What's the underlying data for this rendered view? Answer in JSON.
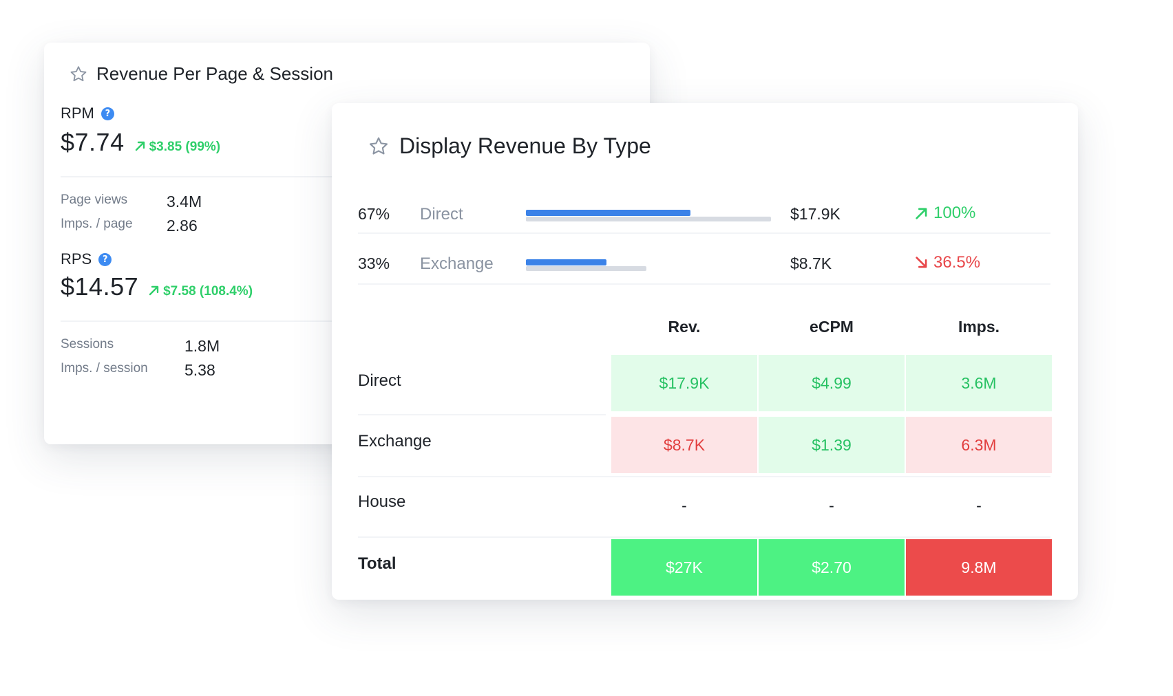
{
  "revenue_card": {
    "title": "Revenue Per Page & Session",
    "rpm": {
      "label": "RPM",
      "value": "$7.74",
      "change": "$3.85 (99%)"
    },
    "page_stats": [
      {
        "label": "Page views",
        "value": "3.4M"
      },
      {
        "label": "Imps. / page",
        "value": "2.86"
      }
    ],
    "rps": {
      "label": "RPS",
      "value": "$14.57",
      "change": "$7.58 (108.4%)"
    },
    "session_stats": [
      {
        "label": "Sessions",
        "value": "1.8M"
      },
      {
        "label": "Imps. / session",
        "value": "5.38"
      }
    ]
  },
  "display_card": {
    "title": "Display Revenue By Type",
    "types": [
      {
        "percent": "67%",
        "name": "Direct",
        "share": 0.67,
        "amount": "$17.9K",
        "change": "100%",
        "direction": "up",
        "color": "#2fcf6a"
      },
      {
        "percent": "33%",
        "name": "Exchange",
        "share": 0.33,
        "amount": "$8.7K",
        "change": "36.5%",
        "direction": "down",
        "color": "#e8474a"
      }
    ],
    "table": {
      "columns": [
        "Rev.",
        "eCPM",
        "Imps."
      ],
      "rows": [
        {
          "label": "Direct",
          "cells": [
            "$17.9K",
            "$4.99",
            "3.6M"
          ]
        },
        {
          "label": "Exchange",
          "cells": [
            "$8.7K",
            "$1.39",
            "6.3M"
          ]
        },
        {
          "label": "House",
          "cells": [
            "-",
            "-",
            "-"
          ]
        },
        {
          "label": "Total",
          "cells": [
            "$27K",
            "$2.70",
            "9.8M"
          ]
        }
      ]
    }
  },
  "colors": {
    "accent_blue": "#3b82e8",
    "positive": "#2fcf6a",
    "negative": "#e8474a"
  }
}
